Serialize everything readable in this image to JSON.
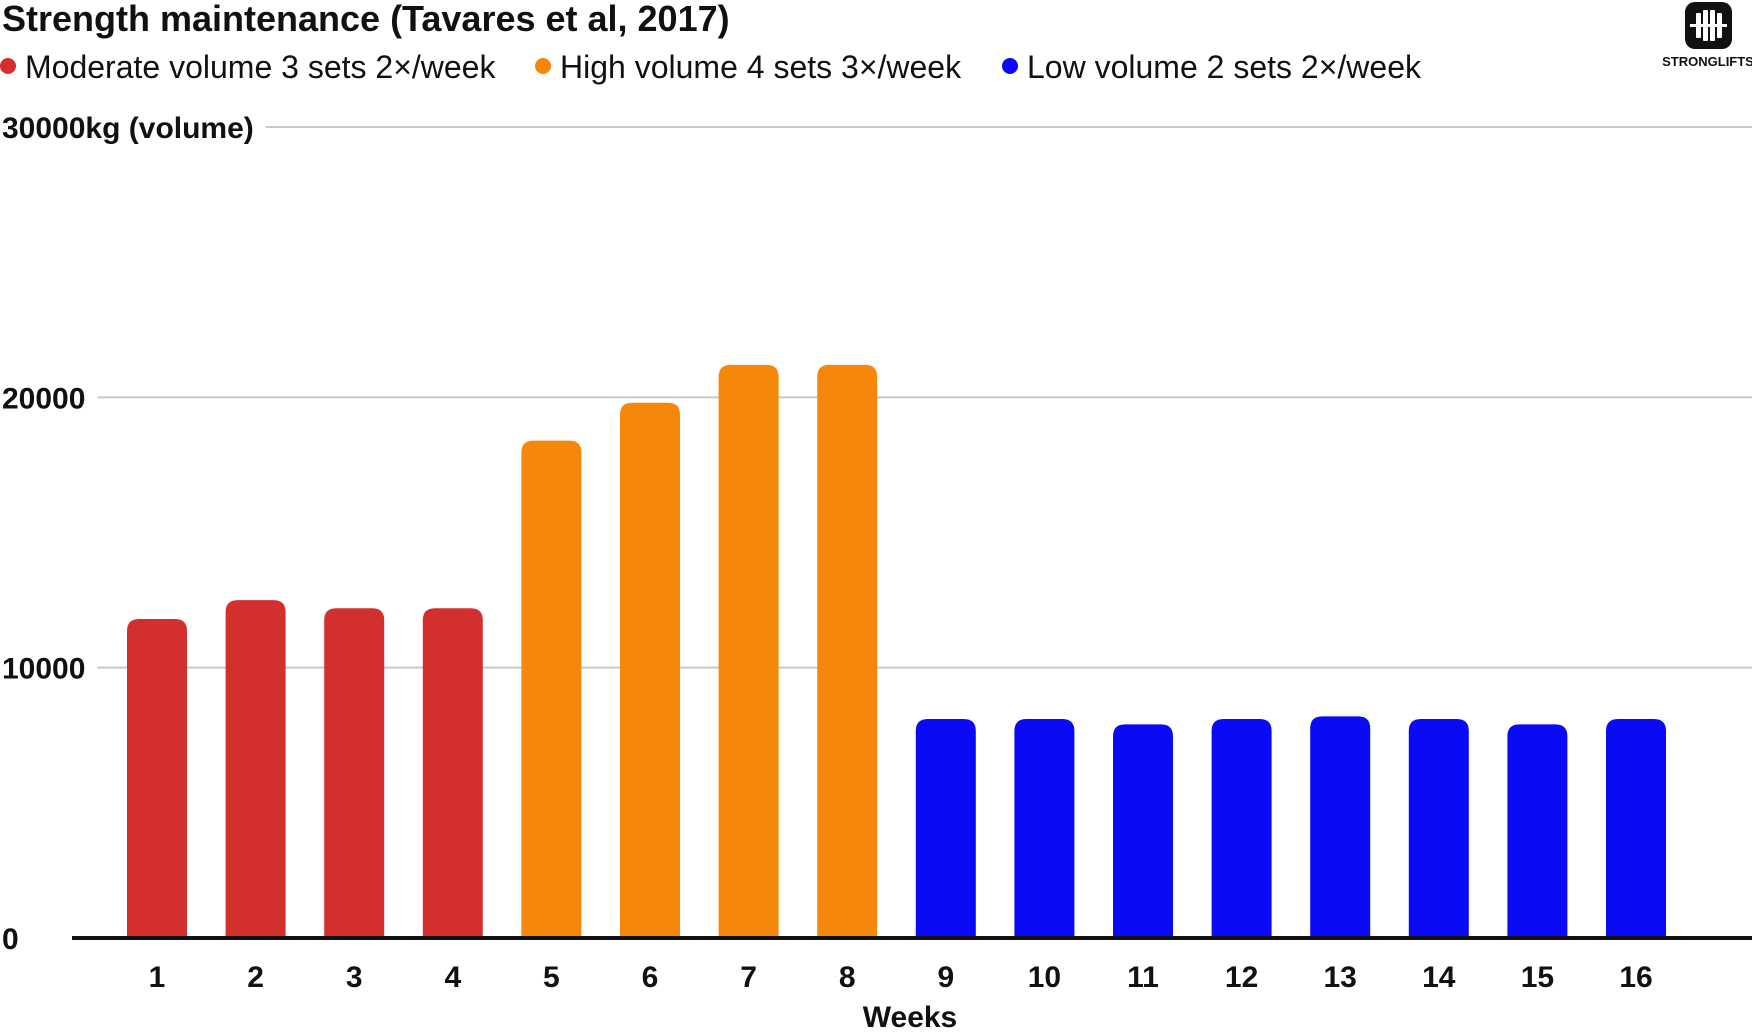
{
  "chart_data": {
    "type": "bar",
    "title": "Strength maintenance (Tavares et al, 2017)",
    "xlabel": "Weeks",
    "ylabel": "kg (volume)",
    "ylim": [
      0,
      30000
    ],
    "grid": true,
    "legend_position": "top-left",
    "y_ticks": [
      {
        "value": 0,
        "label": "0"
      },
      {
        "value": 10000,
        "label": "10000"
      },
      {
        "value": 20000,
        "label": "20000"
      },
      {
        "value": 30000,
        "label": "30000kg (volume)"
      }
    ],
    "categories": [
      "1",
      "2",
      "3",
      "4",
      "5",
      "6",
      "7",
      "8",
      "9",
      "10",
      "11",
      "12",
      "13",
      "14",
      "15",
      "16"
    ],
    "series": [
      {
        "name": "Moderate volume 3 sets 2×/week",
        "color": "#d32f2f"
      },
      {
        "name": "High volume 4 sets 3×/week",
        "color": "#f5870a"
      },
      {
        "name": "Low volume 2 sets 2×/week",
        "color": "#0a0af5"
      }
    ],
    "bars": [
      {
        "week": "1",
        "value": 11800,
        "series": 0
      },
      {
        "week": "2",
        "value": 12500,
        "series": 0
      },
      {
        "week": "3",
        "value": 12200,
        "series": 0
      },
      {
        "week": "4",
        "value": 12200,
        "series": 0
      },
      {
        "week": "5",
        "value": 18400,
        "series": 1
      },
      {
        "week": "6",
        "value": 19800,
        "series": 1
      },
      {
        "week": "7",
        "value": 21200,
        "series": 1
      },
      {
        "week": "8",
        "value": 21200,
        "series": 1
      },
      {
        "week": "9",
        "value": 8100,
        "series": 2
      },
      {
        "week": "10",
        "value": 8100,
        "series": 2
      },
      {
        "week": "11",
        "value": 7900,
        "series": 2
      },
      {
        "week": "12",
        "value": 8100,
        "series": 2
      },
      {
        "week": "13",
        "value": 8200,
        "series": 2
      },
      {
        "week": "14",
        "value": 8100,
        "series": 2
      },
      {
        "week": "15",
        "value": 7900,
        "series": 2
      },
      {
        "week": "16",
        "value": 8100,
        "series": 2
      }
    ]
  },
  "logo": {
    "text": "STRONGLIFTS",
    "icon": "barbell-icon"
  }
}
